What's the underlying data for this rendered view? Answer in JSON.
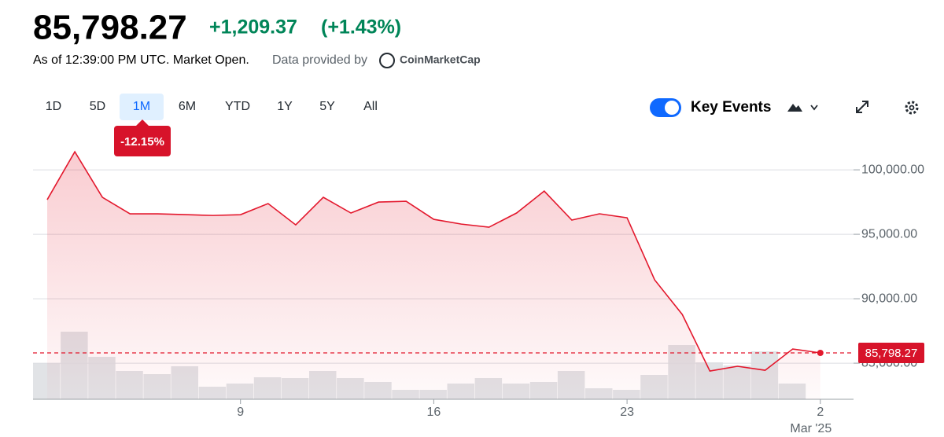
{
  "header": {
    "price": "85,798.27",
    "change": "+1,209.37",
    "change_percent": "(+1.43%)",
    "as_of": "As of 12:39:00 PM UTC. Market Open.",
    "provider_prefix": "Data provided by",
    "provider": "CoinMarketCap"
  },
  "toolbar": {
    "ranges": [
      "1D",
      "5D",
      "1M",
      "6M",
      "YTD",
      "1Y",
      "5Y",
      "All"
    ],
    "selected_range": 2,
    "period_change": "-12.15%",
    "key_events": "Key Events"
  },
  "chart_data": {
    "type": "line",
    "categories": [
      null,
      null,
      null,
      null,
      null,
      null,
      null,
      "9",
      null,
      null,
      null,
      null,
      null,
      null,
      "16",
      null,
      null,
      null,
      null,
      null,
      null,
      "23",
      null,
      null,
      null,
      null,
      null,
      null,
      "2"
    ],
    "x_sublabel": "Mar '25",
    "series": [
      {
        "color": "#e3182d",
        "values": [
          97683,
          101400,
          97866,
          96585,
          96585,
          96524,
          96460,
          96520,
          97380,
          95730,
          97870,
          96650,
          97500,
          97560,
          96160,
          95790,
          95550,
          96650,
          98350,
          96100,
          96590,
          96280,
          91460,
          88780,
          84390,
          84760,
          84450,
          86100,
          85798.27
        ]
      }
    ],
    "volume": {
      "color": "#dcdee2",
      "values": [
        46,
        86,
        54,
        36,
        32,
        42,
        16,
        20,
        28,
        27,
        36,
        27,
        22,
        12,
        12,
        20,
        27,
        20,
        22,
        36,
        14,
        12,
        31,
        69,
        47,
        43,
        61,
        20,
        null
      ],
      "lim": [
        0,
        100
      ]
    },
    "ylim": [
      82200,
      102200
    ],
    "yticks": [
      {
        "value": 85000,
        "label": "85,000.00"
      },
      {
        "value": 90000,
        "label": "90,000.00"
      },
      {
        "value": 95000,
        "label": "95,000.00"
      },
      {
        "value": 100000,
        "label": "100,000.00"
      }
    ],
    "grid": true,
    "reference_line": {
      "value": 85798.27,
      "label": "85,798.27",
      "color": "#e3182d"
    }
  }
}
